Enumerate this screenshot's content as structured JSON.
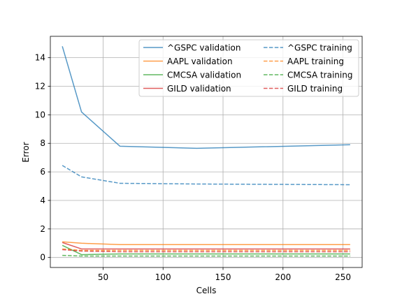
{
  "chart_data": {
    "type": "line",
    "xlabel": "Cells",
    "ylabel": "Error",
    "xlim": [
      6,
      266
    ],
    "ylim": [
      -0.7,
      15.5
    ],
    "xticks": [
      50,
      100,
      150,
      200,
      250
    ],
    "yticks": [
      0,
      2,
      4,
      6,
      8,
      10,
      12,
      14
    ],
    "grid": true,
    "legend_position": "top-right",
    "legend_columns": 2,
    "x": [
      16,
      32,
      64,
      128,
      256
    ],
    "series": [
      {
        "name": "^GSPC validation",
        "color": "#1f77b4",
        "style": "solid",
        "values": [
          14.8,
          10.2,
          7.8,
          7.65,
          7.9
        ]
      },
      {
        "name": "AAPL validation",
        "color": "#ff7f0e",
        "style": "solid",
        "values": [
          1.1,
          1.0,
          0.9,
          0.9,
          0.9
        ]
      },
      {
        "name": "CMCSA validation",
        "color": "#2ca02c",
        "style": "solid",
        "values": [
          0.85,
          0.2,
          0.25,
          0.25,
          0.25
        ]
      },
      {
        "name": "GILD validation",
        "color": "#d62728",
        "style": "solid",
        "values": [
          1.05,
          0.6,
          0.6,
          0.6,
          0.6
        ]
      },
      {
        "name": "^GSPC training",
        "color": "#1f77b4",
        "style": "dashed",
        "values": [
          6.45,
          5.65,
          5.2,
          5.15,
          5.1
        ]
      },
      {
        "name": "AAPL training",
        "color": "#ff7f0e",
        "style": "dashed",
        "values": [
          0.6,
          0.5,
          0.5,
          0.5,
          0.5
        ]
      },
      {
        "name": "CMCSA training",
        "color": "#2ca02c",
        "style": "dashed",
        "values": [
          0.15,
          0.1,
          0.1,
          0.1,
          0.1
        ]
      },
      {
        "name": "GILD training",
        "color": "#d62728",
        "style": "dashed",
        "values": [
          0.55,
          0.45,
          0.4,
          0.4,
          0.4
        ]
      }
    ]
  }
}
